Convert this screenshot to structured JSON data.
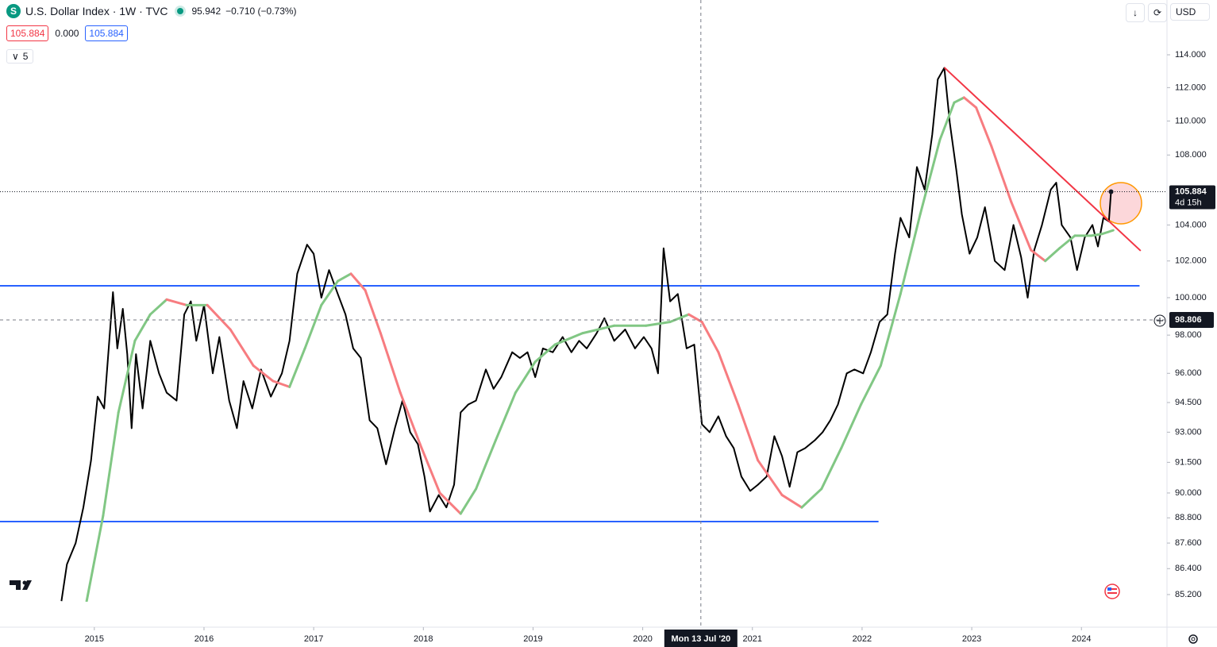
{
  "header": {
    "symbol_icon": "S",
    "title": "U.S. Dollar Index · 1W · TVC",
    "price": "95.942",
    "change": "−0.710 (−0.73%)",
    "indicator_values": [
      "105.884",
      "0.000",
      "105.884"
    ],
    "indicator_toggle": "5",
    "currency": "USD"
  },
  "chart_data": {
    "type": "line",
    "log_scale": true,
    "grid": false,
    "xlim": [
      2014.14,
      2024.78
    ],
    "xticks": [
      2015,
      2016,
      2017,
      2018,
      2019,
      2020,
      2021,
      2022,
      2023,
      2024
    ],
    "ylim": [
      84.87,
      117.42
    ],
    "yticks": [
      {
        "value": 114,
        "label": "114.000"
      },
      {
        "value": 112,
        "label": "112.000"
      },
      {
        "value": 110,
        "label": "110.000"
      },
      {
        "value": 108,
        "label": "108.000"
      },
      {
        "value": 104,
        "label": "104.000"
      },
      {
        "value": 102,
        "label": "102.000"
      },
      {
        "value": 100,
        "label": "100.000"
      },
      {
        "value": 98,
        "label": "98.000"
      },
      {
        "value": 96,
        "label": "96.000"
      },
      {
        "value": 94.5,
        "label": "94.500"
      },
      {
        "value": 93,
        "label": "93.000"
      },
      {
        "value": 91.5,
        "label": "91.500"
      },
      {
        "value": 90,
        "label": "90.000"
      },
      {
        "value": 88.8,
        "label": "88.800"
      },
      {
        "value": 87.6,
        "label": "87.600"
      },
      {
        "value": 86.4,
        "label": "86.400"
      },
      {
        "value": 85.2,
        "label": "85.200"
      }
    ],
    "series": [
      {
        "color": "#000000",
        "x": [
          2014.7,
          2014.75,
          2014.83,
          2014.9,
          2014.97,
          2015.03,
          2015.09,
          2015.17,
          2015.21,
          2015.26,
          2015.3,
          2015.34,
          2015.38,
          2015.44,
          2015.51,
          2015.59,
          2015.66,
          2015.75,
          2015.82,
          2015.88,
          2015.93,
          2016.0,
          2016.08,
          2016.14,
          2016.23,
          2016.3,
          2016.36,
          2016.44,
          2016.52,
          2016.61,
          2016.71,
          2016.78,
          2016.85,
          2016.94,
          2017.0,
          2017.07,
          2017.14,
          2017.22,
          2017.29,
          2017.36,
          2017.43,
          2017.51,
          2017.58,
          2017.66,
          2017.74,
          2017.81,
          2017.88,
          2017.95,
          2018.01,
          2018.06,
          2018.14,
          2018.21,
          2018.28,
          2018.34,
          2018.41,
          2018.48,
          2018.57,
          2018.64,
          2018.71,
          2018.81,
          2018.88,
          2018.95,
          2019.02,
          2019.09,
          2019.18,
          2019.27,
          2019.35,
          2019.42,
          2019.49,
          2019.58,
          2019.65,
          2019.74,
          2019.84,
          2019.93,
          2020.01,
          2020.08,
          2020.14,
          2020.19,
          2020.25,
          2020.32,
          2020.4,
          2020.47,
          2020.54,
          2020.61,
          2020.69,
          2020.76,
          2020.83,
          2020.9,
          2020.98,
          2021.05,
          2021.13,
          2021.2,
          2021.27,
          2021.34,
          2021.41,
          2021.48,
          2021.57,
          2021.64,
          2021.71,
          2021.78,
          2021.86,
          2021.93,
          2022.01,
          2022.08,
          2022.16,
          2022.23,
          2022.3,
          2022.35,
          2022.43,
          2022.5,
          2022.57,
          2022.64,
          2022.69,
          2022.75,
          2022.8,
          2022.86,
          2022.91,
          2022.98,
          2023.05,
          2023.12,
          2023.21,
          2023.3,
          2023.38,
          2023.45,
          2023.51,
          2023.57,
          2023.64,
          2023.72,
          2023.77,
          2023.82,
          2023.9,
          2023.96,
          2024.03,
          2024.1,
          2024.15,
          2024.2,
          2024.25,
          2024.27
        ],
        "values": [
          84.9,
          86.6,
          87.6,
          89.3,
          91.6,
          94.8,
          94.2,
          100.3,
          97.3,
          99.4,
          97.0,
          93.2,
          97.0,
          94.2,
          97.7,
          96.0,
          95.0,
          94.6,
          99.1,
          99.8,
          97.7,
          99.6,
          96.0,
          97.9,
          94.6,
          93.2,
          95.6,
          94.2,
          96.2,
          94.8,
          96.0,
          97.7,
          101.3,
          102.9,
          102.4,
          100.0,
          101.5,
          100.2,
          99.1,
          97.3,
          96.8,
          93.6,
          93.2,
          91.4,
          93.2,
          94.6,
          93.0,
          92.4,
          90.8,
          89.1,
          89.9,
          89.3,
          90.4,
          94.0,
          94.4,
          94.6,
          96.2,
          95.2,
          95.8,
          97.1,
          96.8,
          97.1,
          95.8,
          97.3,
          97.1,
          97.9,
          97.1,
          97.7,
          97.3,
          98.1,
          98.9,
          97.7,
          98.3,
          97.3,
          97.9,
          97.3,
          96.0,
          102.7,
          99.8,
          100.2,
          97.3,
          97.5,
          93.4,
          93.0,
          93.8,
          92.8,
          92.2,
          90.8,
          90.1,
          90.4,
          90.8,
          92.8,
          91.8,
          90.3,
          92.0,
          92.2,
          92.6,
          93.0,
          93.6,
          94.4,
          96.0,
          96.2,
          96.0,
          97.1,
          98.7,
          99.1,
          102.4,
          104.4,
          103.3,
          107.3,
          106.0,
          109.2,
          112.5,
          113.2,
          109.9,
          107.1,
          104.6,
          102.4,
          103.3,
          105.0,
          102.0,
          101.5,
          104.0,
          102.2,
          100.0,
          102.6,
          104.0,
          106.0,
          106.4,
          104.0,
          103.3,
          101.5,
          103.3,
          104.0,
          102.8,
          104.4,
          104.2,
          105.884
        ]
      },
      {
        "color": "#81c784",
        "down_color": "#f77c80",
        "x": [
          2014.93,
          2015.08,
          2015.22,
          2015.37,
          2015.51,
          2015.66,
          2015.84,
          2016.03,
          2016.24,
          2016.45,
          2016.63,
          2016.78,
          2016.92,
          2017.07,
          2017.22,
          2017.34,
          2017.47,
          2017.61,
          2017.79,
          2017.97,
          2018.15,
          2018.34,
          2018.48,
          2018.66,
          2018.84,
          2019.02,
          2019.2,
          2019.45,
          2019.74,
          2020.03,
          2020.25,
          2020.42,
          2020.54,
          2020.69,
          2020.87,
          2021.05,
          2021.27,
          2021.45,
          2021.63,
          2021.81,
          2021.99,
          2022.17,
          2022.35,
          2022.53,
          2022.71,
          2022.84,
          2022.93,
          2023.04,
          2023.18,
          2023.36,
          2023.54,
          2023.67,
          2023.8,
          2023.94,
          2024.09,
          2024.19,
          2024.29
        ],
        "values": [
          84.9,
          88.9,
          94.0,
          97.7,
          99.1,
          99.9,
          99.6,
          99.6,
          98.3,
          96.4,
          95.6,
          95.3,
          97.3,
          99.6,
          100.9,
          101.3,
          100.4,
          98.1,
          95.0,
          92.4,
          90.0,
          89.0,
          90.2,
          92.6,
          95.0,
          96.6,
          97.5,
          98.1,
          98.5,
          98.5,
          98.7,
          99.1,
          98.7,
          97.1,
          94.4,
          91.6,
          89.9,
          89.3,
          90.2,
          92.2,
          94.4,
          96.4,
          100.2,
          104.6,
          108.9,
          111.1,
          111.4,
          110.8,
          108.5,
          105.3,
          102.6,
          102.0,
          102.7,
          103.4,
          103.4,
          103.5,
          103.7
        ]
      }
    ],
    "levels": [
      {
        "value": 100.64,
        "x_end": 2024.53,
        "color": "#2962ff"
      },
      {
        "value": 88.62,
        "x_end": 2022.15,
        "color": "#2962ff"
      }
    ],
    "trendline": {
      "x": [
        2022.75,
        2024.54
      ],
      "values": [
        113.22,
        102.56
      ],
      "color": "#f23645"
    },
    "countdown": "4d 15h",
    "crosshair": {
      "x": 2020.53,
      "y": 98.806,
      "x_label": "Mon 13 Jul '20"
    }
  }
}
